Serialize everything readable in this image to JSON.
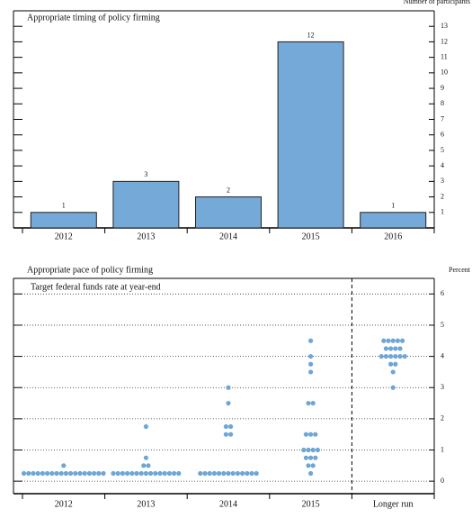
{
  "chart_data": [
    {
      "type": "bar",
      "title": "Appropriate timing of policy firming",
      "y_axis_label": "Number of participants",
      "categories": [
        "2012",
        "2013",
        "2014",
        "2015",
        "2016"
      ],
      "values": [
        1,
        3,
        2,
        12,
        1
      ],
      "color": "#74a9d8",
      "ylim": [
        0,
        14
      ],
      "yticks": [
        1,
        2,
        3,
        4,
        5,
        6,
        7,
        8,
        9,
        10,
        11,
        12,
        13
      ]
    },
    {
      "type": "dot",
      "title": "Appropriate pace of policy firming",
      "subtitle": "Target federal funds rate at year-end",
      "y_axis_label": "Percent",
      "categories": [
        "2012",
        "2013",
        "2014",
        "2015",
        "Longer run"
      ],
      "values": [
        [
          0.25,
          0.25,
          0.25,
          0.25,
          0.25,
          0.25,
          0.25,
          0.25,
          0.25,
          0.25,
          0.25,
          0.25,
          0.25,
          0.25,
          0.25,
          0.25,
          0.25,
          0.25,
          0.5
        ],
        [
          0.25,
          0.25,
          0.25,
          0.25,
          0.25,
          0.25,
          0.25,
          0.25,
          0.25,
          0.25,
          0.25,
          0.25,
          0.25,
          0.25,
          0.25,
          0.5,
          0.5,
          0.75,
          1.75
        ],
        [
          0.25,
          0.25,
          0.25,
          0.25,
          0.25,
          0.25,
          0.25,
          0.25,
          0.25,
          0.25,
          0.25,
          0.25,
          0.25,
          1.5,
          1.5,
          1.75,
          1.75,
          2.5,
          3
        ],
        [
          0.25,
          0.5,
          0.5,
          0.75,
          0.75,
          0.75,
          1,
          1,
          1,
          1,
          1.5,
          1.5,
          1.5,
          2.5,
          2.5,
          3.5,
          3.75,
          4,
          4.5
        ],
        [
          3,
          3.5,
          3.75,
          3.75,
          4,
          4,
          4,
          4,
          4,
          4,
          4.25,
          4.25,
          4.25,
          4.25,
          4.5,
          4.5,
          4.5,
          4.5,
          4.5
        ]
      ],
      "color": "#6ea6d6",
      "ylim": [
        -0.4,
        6.5
      ],
      "yticks": [
        0,
        1,
        2,
        3,
        4,
        5,
        6
      ],
      "grid": true
    }
  ]
}
